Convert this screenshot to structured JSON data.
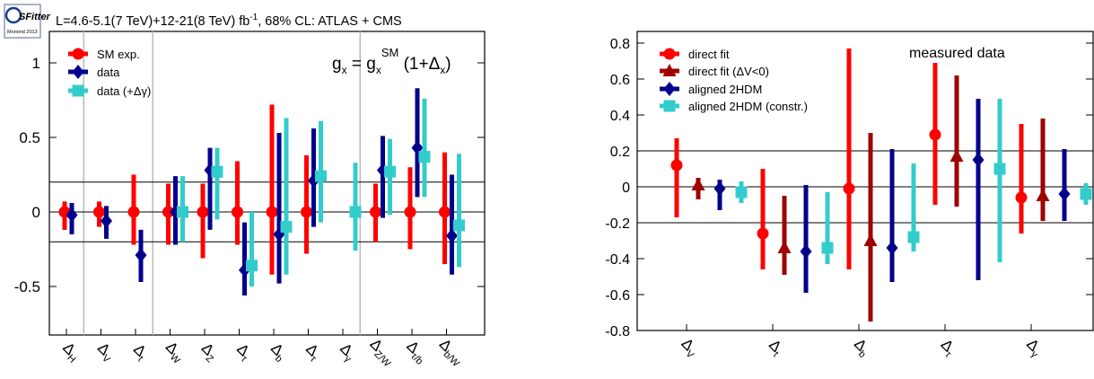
{
  "colors": {
    "sm": "#ff0000",
    "data": "#00008b",
    "data_gamma": "#33cccc",
    "direct_fit": "#ff0000",
    "direct_fit_v": "#a00000",
    "aligned": "#00008b",
    "aligned_constr": "#33cccc"
  },
  "logo": {
    "name": "sfitter-logo",
    "text": "SFitter",
    "subtext": "Moriond 2013"
  },
  "chart_data": [
    {
      "type": "scatter",
      "title": "L=4.6-5.1(7 TeV)+12-21(8 TeV) fb⁻¹, 68% CL: ATLAS + CMS",
      "formula": "gx = gxSM (1+Δx)",
      "categories": [
        "ΔH",
        "ΔV",
        "Δt",
        "ΔW",
        "ΔZ",
        "Δτ",
        "Δb",
        "Δτ",
        "Δγ",
        "ΔZ/W",
        "Δτ/b",
        "Δb/W"
      ],
      "ylim": [
        -0.8,
        1.2
      ],
      "yticks": [
        -0.5,
        0,
        0.5,
        1
      ],
      "ytick_labels": [
        "-0.5",
        "0",
        "0.5",
        "1"
      ],
      "hlines": [
        0.2,
        0,
        -0.2
      ],
      "separators_after": [
        0,
        2,
        8
      ],
      "legend": [
        "SM exp.",
        "data",
        "data (+Δγ)"
      ],
      "series": [
        {
          "name": "SM exp.",
          "marker": "circle",
          "color_key": "sm",
          "points": [
            [
              0,
              0,
              -0.12,
              0.07
            ],
            [
              1,
              0,
              -0.1,
              0.07
            ],
            [
              2,
              0,
              -0.22,
              0.25
            ],
            [
              3,
              0,
              -0.22,
              0.19
            ],
            [
              4,
              0,
              -0.31,
              0.19
            ],
            [
              5,
              0,
              -0.22,
              0.34
            ],
            [
              6,
              0,
              -0.42,
              0.72
            ],
            [
              7,
              0,
              -0.28,
              0.38
            ],
            [
              9,
              0,
              -0.2,
              0.19
            ],
            [
              10,
              0,
              -0.25,
              0.3
            ],
            [
              11,
              0,
              -0.35,
              0.4
            ]
          ]
        },
        {
          "name": "data",
          "marker": "diamond",
          "color_key": "data",
          "points": [
            [
              0,
              -0.02,
              -0.15,
              0.06
            ],
            [
              1,
              -0.06,
              -0.18,
              0.04
            ],
            [
              2,
              -0.29,
              -0.47,
              -0.12
            ],
            [
              3,
              0.0,
              -0.22,
              0.24
            ],
            [
              4,
              0.28,
              -0.12,
              0.43
            ],
            [
              5,
              -0.39,
              -0.56,
              -0.07
            ],
            [
              6,
              -0.15,
              -0.48,
              0.53
            ],
            [
              7,
              0.21,
              -0.1,
              0.56
            ],
            [
              9,
              0.28,
              -0.04,
              0.51
            ],
            [
              10,
              0.43,
              0.1,
              0.83
            ],
            [
              11,
              -0.16,
              -0.42,
              0.25
            ]
          ]
        },
        {
          "name": "data (+Δγ)",
          "marker": "square",
          "color_key": "data_gamma",
          "points": [
            [
              3,
              0.0,
              -0.2,
              0.24
            ],
            [
              4,
              0.27,
              -0.05,
              0.43
            ],
            [
              5,
              -0.36,
              -0.5,
              0.0
            ],
            [
              6,
              -0.1,
              -0.42,
              0.63
            ],
            [
              7,
              0.24,
              -0.07,
              0.61
            ],
            [
              8,
              0.0,
              -0.26,
              0.33
            ],
            [
              9,
              0.27,
              -0.02,
              0.49
            ],
            [
              10,
              0.37,
              0.1,
              0.76
            ],
            [
              11,
              -0.09,
              -0.37,
              0.39
            ]
          ]
        }
      ]
    },
    {
      "type": "scatter",
      "title": "",
      "annotation": "measured data",
      "categories": [
        "ΔV",
        "Δt",
        "Δb",
        "Δτ",
        "Δγ"
      ],
      "ylim": [
        -0.8,
        0.9
      ],
      "yticks": [
        -0.8,
        -0.6,
        -0.4,
        -0.2,
        0,
        0.2,
        0.4,
        0.6,
        0.8
      ],
      "ytick_labels": [
        "-0.8",
        "-0.6",
        "-0.4",
        "-0.2",
        "0",
        "0.2",
        "0.4",
        "0.6",
        "0.8"
      ],
      "hlines": [
        0.2,
        0,
        -0.2
      ],
      "legend": [
        "direct fit",
        "direct fit (ΔV<0)",
        "aligned 2HDM",
        "aligned 2HDM (constr.)"
      ],
      "series": [
        {
          "name": "direct fit",
          "marker": "circle",
          "color_key": "direct_fit",
          "points": [
            [
              0,
              0.12,
              -0.17,
              0.27
            ],
            [
              1,
              -0.26,
              -0.46,
              0.1
            ],
            [
              2,
              -0.01,
              -0.46,
              0.77
            ],
            [
              3,
              0.29,
              -0.1,
              0.69
            ],
            [
              4,
              -0.06,
              -0.26,
              0.35
            ]
          ]
        },
        {
          "name": "direct fit (ΔV<0)",
          "marker": "triangle",
          "color_key": "direct_fit_v",
          "points": [
            [
              0,
              0.01,
              -0.07,
              0.05
            ],
            [
              1,
              -0.34,
              -0.49,
              -0.05
            ],
            [
              2,
              -0.3,
              -0.75,
              0.3
            ],
            [
              3,
              0.17,
              -0.11,
              0.62
            ],
            [
              4,
              -0.05,
              -0.19,
              0.38
            ]
          ]
        },
        {
          "name": "aligned 2HDM",
          "marker": "diamond",
          "color_key": "aligned",
          "points": [
            [
              0,
              -0.01,
              -0.13,
              0.04
            ],
            [
              1,
              -0.36,
              -0.59,
              0.01
            ],
            [
              2,
              -0.34,
              -0.53,
              0.21
            ],
            [
              3,
              0.15,
              -0.52,
              0.49
            ],
            [
              4,
              -0.04,
              -0.19,
              0.21
            ]
          ]
        },
        {
          "name": "aligned 2HDM (constr.)",
          "marker": "square",
          "color_key": "aligned_constr",
          "points": [
            [
              0,
              -0.03,
              -0.09,
              0.03
            ],
            [
              1,
              -0.34,
              -0.43,
              -0.03
            ],
            [
              2,
              -0.28,
              -0.36,
              0.13
            ],
            [
              3,
              0.1,
              -0.42,
              0.49
            ],
            [
              4,
              -0.04,
              -0.1,
              0.02
            ]
          ]
        }
      ]
    }
  ]
}
